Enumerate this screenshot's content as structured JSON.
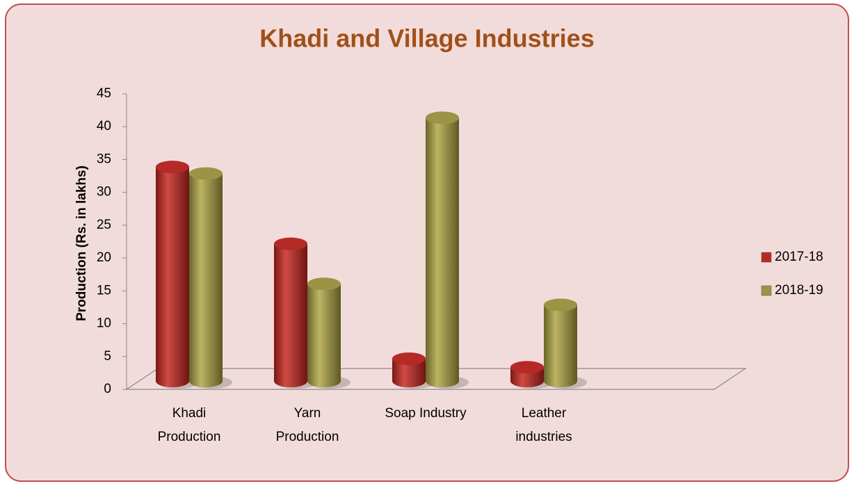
{
  "chart_data": {
    "type": "bar",
    "title": "Khadi and Village Industries",
    "y_label": "Production (Rs. in lakhs)",
    "categories": [
      [
        "Khadi",
        "Production"
      ],
      [
        "Yarn",
        "Production"
      ],
      [
        "Soap Industry"
      ],
      [
        "Leather",
        "industries"
      ]
    ],
    "series": [
      {
        "name": "2017-18",
        "color": "#b52a26",
        "values": [
          34.5,
          22.8,
          5.3,
          4
        ]
      },
      {
        "name": "2018-19",
        "color": "#9c9444",
        "values": [
          33.5,
          16.7,
          42,
          13.5
        ]
      }
    ],
    "ylim": [
      0,
      45
    ],
    "yticks": [
      0,
      5,
      10,
      15,
      20,
      25,
      30,
      35,
      40,
      45
    ],
    "legend": "right"
  }
}
